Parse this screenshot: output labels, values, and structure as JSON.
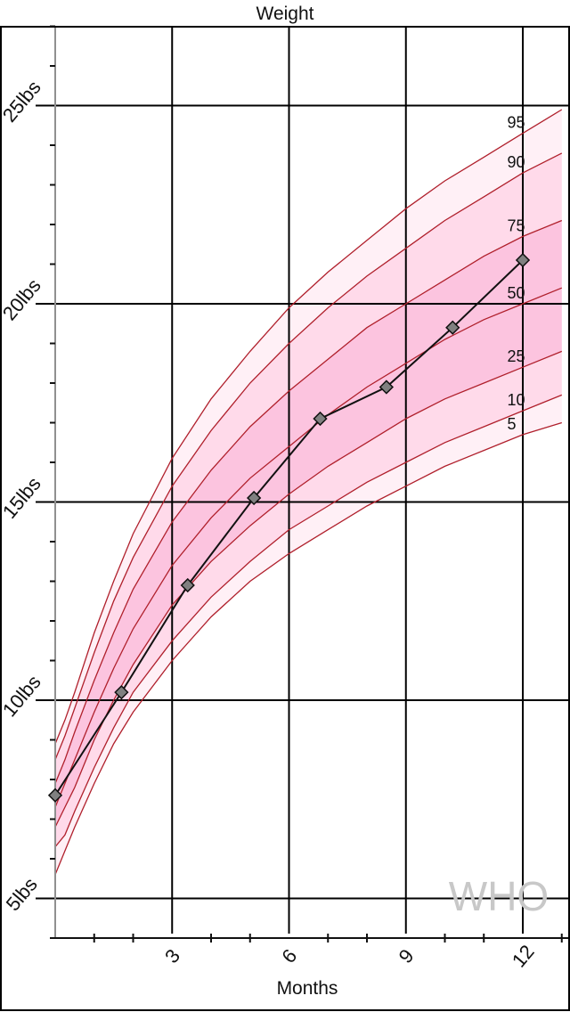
{
  "chart_data": {
    "type": "line",
    "title": "Weight",
    "xlabel": "Months",
    "ylabel": "",
    "xlim": [
      0,
      13
    ],
    "ylim": [
      4,
      27
    ],
    "x_ticks": [
      3,
      6,
      9,
      12
    ],
    "x_tick_labels": [
      "3",
      "6",
      "9",
      "12"
    ],
    "y_ticks": [
      5,
      10,
      15,
      20,
      25
    ],
    "y_tick_labels": [
      "5lbs",
      "10lbs",
      "15lbs",
      "20lbs",
      "25lbs"
    ],
    "grid": true,
    "watermark": "WHO",
    "colors": {
      "band_outer": "#fff0f6",
      "band_mid": "#ffdaea",
      "band_inner": "#fcc4df",
      "percentile_line": "#b0202c",
      "child_line": "#111111",
      "child_marker": "#808080",
      "grid": "#000000"
    },
    "percentile_x": [
      0,
      0.25,
      0.5,
      1,
      1.5,
      2,
      3,
      4,
      5,
      6,
      7,
      8,
      9,
      10,
      11,
      12,
      13
    ],
    "percentiles": [
      {
        "name": "95",
        "values": [
          8.9,
          9.5,
          10.2,
          11.7,
          13.0,
          14.2,
          16.1,
          17.6,
          18.8,
          19.9,
          20.8,
          21.6,
          22.4,
          23.1,
          23.7,
          24.3,
          24.9
        ]
      },
      {
        "name": "90",
        "values": [
          8.5,
          9.1,
          9.8,
          11.2,
          12.5,
          13.6,
          15.4,
          16.8,
          18.0,
          19.0,
          19.9,
          20.7,
          21.4,
          22.1,
          22.7,
          23.3,
          23.8
        ]
      },
      {
        "name": "75",
        "values": [
          7.9,
          8.5,
          9.2,
          10.5,
          11.7,
          12.8,
          14.5,
          15.8,
          16.9,
          17.8,
          18.6,
          19.4,
          20.0,
          20.6,
          21.2,
          21.7,
          22.1
        ]
      },
      {
        "name": "50",
        "values": [
          7.3,
          7.9,
          8.5,
          9.7,
          10.8,
          11.8,
          13.4,
          14.6,
          15.6,
          16.4,
          17.2,
          17.9,
          18.5,
          19.1,
          19.6,
          20.0,
          20.4
        ]
      },
      {
        "name": "25",
        "values": [
          6.8,
          7.3,
          7.8,
          9.0,
          10.0,
          10.9,
          12.4,
          13.5,
          14.4,
          15.2,
          15.9,
          16.5,
          17.1,
          17.6,
          18.0,
          18.4,
          18.8
        ]
      },
      {
        "name": "10",
        "values": [
          6.3,
          6.6,
          7.2,
          8.3,
          9.3,
          10.2,
          11.5,
          12.6,
          13.5,
          14.3,
          14.9,
          15.5,
          16.0,
          16.5,
          16.9,
          17.3,
          17.7
        ]
      },
      {
        "name": "5",
        "values": [
          5.6,
          6.2,
          6.8,
          7.9,
          8.9,
          9.7,
          11.0,
          12.1,
          13.0,
          13.7,
          14.3,
          14.9,
          15.4,
          15.9,
          16.3,
          16.7,
          17.0
        ]
      }
    ],
    "series": [
      {
        "name": "",
        "x": [
          0,
          1.7,
          3.4,
          5.1,
          6.8,
          8.5,
          10.2,
          12.0
        ],
        "values": [
          7.6,
          10.2,
          12.9,
          15.1,
          17.1,
          17.9,
          19.4,
          21.1
        ]
      }
    ]
  }
}
